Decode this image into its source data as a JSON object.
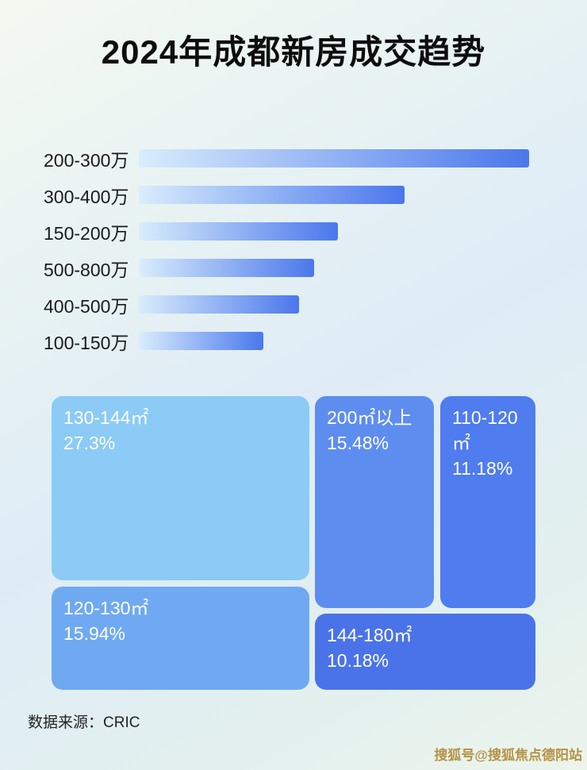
{
  "page": {
    "title": "2024年成都新房成交趋势",
    "source_note": "数据来源：CRIC",
    "watermark": "搜狐号@搜狐焦点德阳站"
  },
  "colors": {
    "bar_gradient_from": "#d9edfc",
    "bar_gradient_to": "#4a77ec",
    "title_text": "#0d0d0d",
    "watermark_gold": "#b69245"
  },
  "chart_data": [
    {
      "type": "bar",
      "orientation": "horizontal",
      "title": "2024年成都新房成交趋势",
      "categories": [
        "200-300万",
        "300-400万",
        "150-200万",
        "500-800万",
        "400-500万",
        "100-150万"
      ],
      "values": [
        100,
        68,
        51,
        45,
        41,
        32
      ],
      "values_note": "relative bar lengths as % of longest bar; no numeric axis or data labels shown in image",
      "xlabel": "",
      "ylabel": "",
      "grid": false,
      "legend": false
    },
    {
      "type": "treemap",
      "title": "",
      "items": [
        {
          "label": "130-144㎡",
          "percent_label": "27.3%",
          "value": 27.3,
          "color": "#8bcbf5"
        },
        {
          "label": "120-130㎡",
          "percent_label": "15.94%",
          "value": 15.94,
          "color": "#6fa9f2"
        },
        {
          "label": "200㎡以上",
          "percent_label": "15.48%",
          "value": 15.48,
          "color": "#5e8df0"
        },
        {
          "label": "110-120㎡",
          "percent_label": "11.18%",
          "value": 11.18,
          "color": "#4f7cee"
        },
        {
          "label": "144-180㎡",
          "percent_label": "10.18%",
          "value": 10.18,
          "color": "#4a73e9"
        }
      ]
    }
  ]
}
